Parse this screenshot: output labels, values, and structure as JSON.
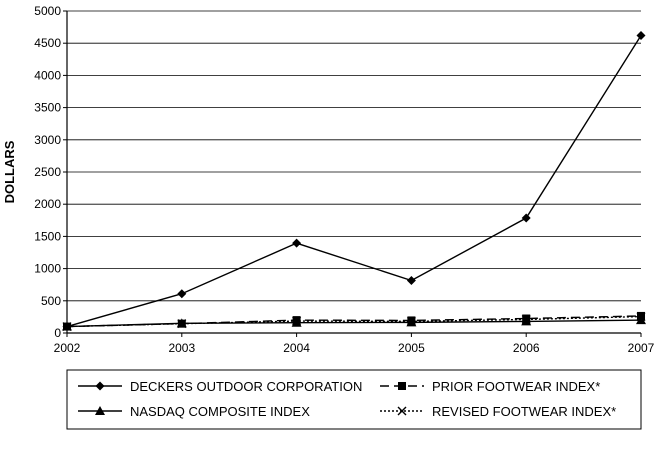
{
  "chart_data": {
    "type": "line",
    "title": "",
    "xlabel": "",
    "ylabel": "DOLLARS",
    "x": [
      "2002",
      "2003",
      "2004",
      "2005",
      "2006",
      "2007"
    ],
    "ylim": [
      0,
      5000
    ],
    "yticks": [
      "0",
      "500",
      "1000",
      "1500",
      "2000",
      "2500",
      "3000",
      "3500",
      "4000",
      "4500",
      "5000"
    ],
    "grid": true,
    "legend_position": "bottom",
    "series": [
      {
        "name": "DECKERS OUTDOOR CORPORATION",
        "marker": "diamond",
        "dash": "solid",
        "values": [
          100,
          610,
          1395,
          815,
          1785,
          4620
        ]
      },
      {
        "name": "NASDAQ COMPOSITE INDEX",
        "marker": "triangle",
        "dash": "solid",
        "values": [
          100,
          150,
          160,
          165,
          180,
          200
        ]
      },
      {
        "name": "PRIOR FOOTWEAR INDEX*",
        "marker": "square",
        "dash": "dashed",
        "values": [
          100,
          145,
          200,
          195,
          225,
          265
        ]
      },
      {
        "name": "REVISED FOOTWEAR INDEX*",
        "marker": "x",
        "dash": "dotted",
        "values": [
          100,
          145,
          185,
          180,
          210,
          255
        ]
      }
    ]
  }
}
